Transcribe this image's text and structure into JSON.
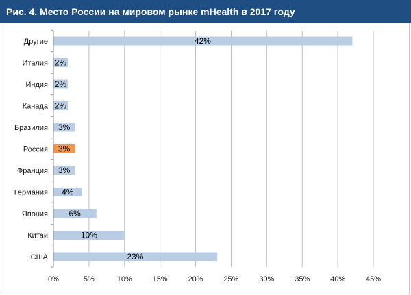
{
  "title": "Рис. 4. Место России на мировом рынке mHealth в 2017 году",
  "colors": {
    "bar": "#b9cde5",
    "highlight": "#f79646",
    "title_bg": "#1f4e82",
    "grid": "#bfbfbf"
  },
  "chart_data": {
    "type": "bar",
    "orientation": "horizontal",
    "categories": [
      "Другие",
      "Италия",
      "Индия",
      "Канада",
      "Бразилия",
      "Россия",
      "Франция",
      "Германия",
      "Япония",
      "Китай",
      "США"
    ],
    "values": [
      42,
      2,
      2,
      2,
      3,
      3,
      3,
      4,
      6,
      10,
      23
    ],
    "value_labels": [
      "42%",
      "2%",
      "2%",
      "2%",
      "3%",
      "3%",
      "3%",
      "4%",
      "6%",
      "10%",
      "23%"
    ],
    "highlight_category": "Россия",
    "xlim": [
      0,
      45
    ],
    "ticks": [
      0,
      5,
      10,
      15,
      20,
      25,
      30,
      35,
      40,
      45
    ],
    "tick_labels": [
      "0%",
      "5%",
      "10%",
      "15%",
      "20%",
      "25%",
      "30%",
      "35%",
      "40%",
      "45%"
    ],
    "grid": true,
    "legend": false
  }
}
